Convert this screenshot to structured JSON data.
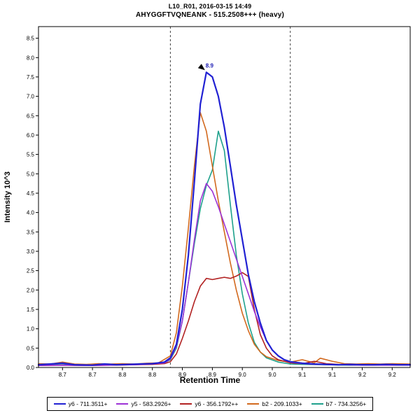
{
  "header": {
    "line1": "L10_R01, 2016-03-15 14:49",
    "line2": "AHYGGFTVQNEANK - 515.2508+++ (heavy)"
  },
  "chart_data": {
    "type": "line",
    "title": "L10_R01, 2016-03-15 14:49",
    "subtitle": "AHYGGFTVQNEANK - 515.2508+++ (heavy)",
    "xlabel": "Retention Time",
    "ylabel": "Intensity 10^3",
    "xlim": [
      8.66,
      9.28
    ],
    "ylim": [
      0,
      8.8
    ],
    "grid": false,
    "legend_position": "bottom",
    "x_ticks": {
      "values": [
        8.7,
        8.75,
        8.8,
        8.85,
        8.9,
        8.95,
        9.0,
        9.05,
        9.1,
        9.15,
        9.2,
        9.25
      ],
      "labels": [
        "8.7",
        "8.7",
        "8.8",
        "8.8",
        "8.9",
        "8.9",
        "9.0",
        "9.0",
        "9.1",
        "9.1",
        "9.2",
        "9.2"
      ]
    },
    "y_ticks": {
      "values": [
        0,
        0.5,
        1.0,
        1.5,
        2.0,
        2.5,
        3.0,
        3.5,
        4.0,
        4.5,
        5.0,
        5.5,
        6.0,
        6.5,
        7.0,
        7.5,
        8.0,
        8.5
      ],
      "labels": [
        "0.0",
        "0.5",
        "1.0",
        "1.5",
        "2.0",
        "2.5",
        "3.0",
        "3.5",
        "4.0",
        "4.5",
        "5.0",
        "5.5",
        "6.0",
        "6.5",
        "7.0",
        "7.5",
        "8.0",
        "8.5"
      ]
    },
    "peak_boundaries": [
      8.88,
      9.08
    ],
    "boundary_color": "#444444",
    "annotation": {
      "label": "8.9",
      "x": 8.94,
      "y": 7.62,
      "color": "#1b1bb3"
    },
    "series": [
      {
        "id": "y6-711",
        "name": "y6 - 711.3511+",
        "color": "#2121d3",
        "width": 2.2,
        "points": [
          [
            8.66,
            0.07
          ],
          [
            8.68,
            0.09
          ],
          [
            8.7,
            0.11
          ],
          [
            8.72,
            0.07
          ],
          [
            8.75,
            0.06
          ],
          [
            8.77,
            0.09
          ],
          [
            8.79,
            0.07
          ],
          [
            8.81,
            0.08
          ],
          [
            8.83,
            0.09
          ],
          [
            8.85,
            0.1
          ],
          [
            8.87,
            0.14
          ],
          [
            8.88,
            0.25
          ],
          [
            8.89,
            0.6
          ],
          [
            8.9,
            1.5
          ],
          [
            8.91,
            2.9
          ],
          [
            8.92,
            4.8
          ],
          [
            8.93,
            6.8
          ],
          [
            8.94,
            7.62
          ],
          [
            8.95,
            7.5
          ],
          [
            8.96,
            7.0
          ],
          [
            8.97,
            6.2
          ],
          [
            8.98,
            5.2
          ],
          [
            8.99,
            4.2
          ],
          [
            9.0,
            3.3
          ],
          [
            9.01,
            2.4
          ],
          [
            9.02,
            1.7
          ],
          [
            9.03,
            1.15
          ],
          [
            9.04,
            0.7
          ],
          [
            9.05,
            0.45
          ],
          [
            9.06,
            0.3
          ],
          [
            9.07,
            0.2
          ],
          [
            9.08,
            0.15
          ],
          [
            9.1,
            0.11
          ],
          [
            9.12,
            0.09
          ],
          [
            9.14,
            0.08
          ],
          [
            9.16,
            0.07
          ],
          [
            9.18,
            0.08
          ],
          [
            9.2,
            0.07
          ],
          [
            9.22,
            0.07
          ],
          [
            9.24,
            0.08
          ],
          [
            9.26,
            0.07
          ],
          [
            9.28,
            0.07
          ]
        ]
      },
      {
        "id": "y5-583",
        "name": "y5 - 583.2926+",
        "color": "#9d33d6",
        "width": 1.6,
        "points": [
          [
            8.66,
            0.05
          ],
          [
            8.7,
            0.06
          ],
          [
            8.74,
            0.05
          ],
          [
            8.78,
            0.06
          ],
          [
            8.82,
            0.07
          ],
          [
            8.85,
            0.09
          ],
          [
            8.87,
            0.12
          ],
          [
            8.88,
            0.22
          ],
          [
            8.89,
            0.55
          ],
          [
            8.9,
            1.2
          ],
          [
            8.91,
            2.2
          ],
          [
            8.92,
            3.3
          ],
          [
            8.93,
            4.3
          ],
          [
            8.94,
            4.75
          ],
          [
            8.95,
            4.55
          ],
          [
            8.96,
            4.15
          ],
          [
            8.97,
            3.7
          ],
          [
            8.98,
            3.25
          ],
          [
            8.99,
            2.8
          ],
          [
            9.0,
            2.35
          ],
          [
            9.01,
            1.9
          ],
          [
            9.02,
            1.45
          ],
          [
            9.03,
            1.05
          ],
          [
            9.04,
            0.7
          ],
          [
            9.05,
            0.45
          ],
          [
            9.06,
            0.3
          ],
          [
            9.07,
            0.2
          ],
          [
            9.08,
            0.14
          ],
          [
            9.1,
            0.1
          ],
          [
            9.12,
            0.08
          ],
          [
            9.16,
            0.07
          ],
          [
            9.2,
            0.06
          ],
          [
            9.24,
            0.06
          ],
          [
            9.28,
            0.06
          ]
        ]
      },
      {
        "id": "y6-356",
        "name": "y6 - 356.1792++",
        "color": "#b22222",
        "width": 1.6,
        "points": [
          [
            8.66,
            0.05
          ],
          [
            8.7,
            0.06
          ],
          [
            8.74,
            0.05
          ],
          [
            8.78,
            0.06
          ],
          [
            8.82,
            0.07
          ],
          [
            8.85,
            0.08
          ],
          [
            8.87,
            0.1
          ],
          [
            8.88,
            0.15
          ],
          [
            8.89,
            0.35
          ],
          [
            8.9,
            0.75
          ],
          [
            8.91,
            1.2
          ],
          [
            8.92,
            1.7
          ],
          [
            8.93,
            2.1
          ],
          [
            8.94,
            2.3
          ],
          [
            8.95,
            2.27
          ],
          [
            8.96,
            2.3
          ],
          [
            8.97,
            2.33
          ],
          [
            8.98,
            2.3
          ],
          [
            8.99,
            2.36
          ],
          [
            9.0,
            2.45
          ],
          [
            9.01,
            2.35
          ],
          [
            9.02,
            1.5
          ],
          [
            9.03,
            0.85
          ],
          [
            9.04,
            0.5
          ],
          [
            9.05,
            0.3
          ],
          [
            9.06,
            0.2
          ],
          [
            9.08,
            0.12
          ],
          [
            9.1,
            0.1
          ],
          [
            9.12,
            0.16
          ],
          [
            9.14,
            0.1
          ],
          [
            9.16,
            0.08
          ],
          [
            9.2,
            0.07
          ],
          [
            9.24,
            0.06
          ],
          [
            9.28,
            0.06
          ]
        ]
      },
      {
        "id": "b2-209",
        "name": "b2 - 209.1033+",
        "color": "#d2691e",
        "width": 1.6,
        "points": [
          [
            8.66,
            0.1
          ],
          [
            8.68,
            0.09
          ],
          [
            8.7,
            0.14
          ],
          [
            8.72,
            0.09
          ],
          [
            8.74,
            0.08
          ],
          [
            8.76,
            0.1
          ],
          [
            8.78,
            0.09
          ],
          [
            8.8,
            0.1
          ],
          [
            8.82,
            0.09
          ],
          [
            8.84,
            0.11
          ],
          [
            8.86,
            0.12
          ],
          [
            8.88,
            0.3
          ],
          [
            8.89,
            0.9
          ],
          [
            8.9,
            2.1
          ],
          [
            8.91,
            3.6
          ],
          [
            8.92,
            5.2
          ],
          [
            8.93,
            6.58
          ],
          [
            8.94,
            6.1
          ],
          [
            8.95,
            5.2
          ],
          [
            8.96,
            4.3
          ],
          [
            8.97,
            3.5
          ],
          [
            8.98,
            2.7
          ],
          [
            8.99,
            2.0
          ],
          [
            9.0,
            1.4
          ],
          [
            9.01,
            0.95
          ],
          [
            9.02,
            0.6
          ],
          [
            9.03,
            0.4
          ],
          [
            9.04,
            0.28
          ],
          [
            9.06,
            0.18
          ],
          [
            9.08,
            0.14
          ],
          [
            9.1,
            0.2
          ],
          [
            9.12,
            0.12
          ],
          [
            9.13,
            0.24
          ],
          [
            9.15,
            0.16
          ],
          [
            9.17,
            0.1
          ],
          [
            9.19,
            0.09
          ],
          [
            9.21,
            0.1
          ],
          [
            9.23,
            0.09
          ],
          [
            9.25,
            0.1
          ],
          [
            9.28,
            0.09
          ]
        ]
      },
      {
        "id": "b7-734",
        "name": "b7 - 734.3256+",
        "color": "#1fa18c",
        "width": 1.6,
        "points": [
          [
            8.66,
            0.06
          ],
          [
            8.7,
            0.07
          ],
          [
            8.74,
            0.06
          ],
          [
            8.78,
            0.07
          ],
          [
            8.82,
            0.08
          ],
          [
            8.85,
            0.09
          ],
          [
            8.87,
            0.12
          ],
          [
            8.88,
            0.2
          ],
          [
            8.89,
            0.5
          ],
          [
            8.9,
            1.2
          ],
          [
            8.91,
            2.2
          ],
          [
            8.92,
            3.2
          ],
          [
            8.93,
            4.1
          ],
          [
            8.94,
            4.7
          ],
          [
            8.95,
            5.1
          ],
          [
            8.96,
            6.1
          ],
          [
            8.97,
            5.6
          ],
          [
            8.98,
            4.2
          ],
          [
            8.99,
            2.9
          ],
          [
            9.0,
            1.9
          ],
          [
            9.01,
            1.15
          ],
          [
            9.02,
            0.65
          ],
          [
            9.03,
            0.4
          ],
          [
            9.04,
            0.25
          ],
          [
            9.06,
            0.14
          ],
          [
            9.08,
            0.09
          ],
          [
            9.1,
            0.08
          ],
          [
            9.14,
            0.07
          ],
          [
            9.18,
            0.06
          ],
          [
            9.22,
            0.07
          ],
          [
            9.26,
            0.06
          ],
          [
            9.28,
            0.06
          ]
        ]
      }
    ]
  }
}
